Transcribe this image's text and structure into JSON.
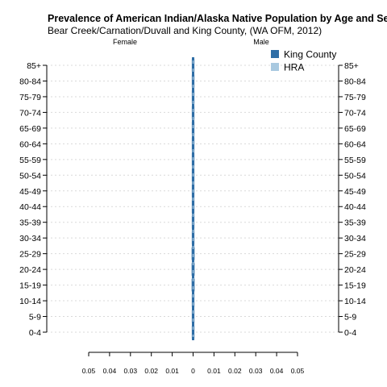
{
  "chart_data": {
    "type": "bar",
    "orientation": "horizontal",
    "title": "Prevalence of American Indian/Alaska Native Population by Age and Sex",
    "subtitle": "Bear Creek/Carnation/Duvall and King County, (WA OFM, 2012)",
    "left_label": "Female",
    "right_label": "Male",
    "categories": [
      "0-4",
      "5-9",
      "10-14",
      "15-19",
      "20-24",
      "25-29",
      "30-34",
      "35-39",
      "40-44",
      "45-49",
      "50-54",
      "55-59",
      "60-64",
      "65-69",
      "70-74",
      "75-79",
      "80-84",
      "85+"
    ],
    "x_ticks": [
      "0.05",
      "0.04",
      "0.03",
      "0.02",
      "0.01",
      "0",
      "0.01",
      "0.02",
      "0.03",
      "0.04",
      "0.05"
    ],
    "xlim": [
      -0.05,
      0.05
    ],
    "grid": true,
    "legend": {
      "position": "top-right",
      "entries": [
        {
          "label": "King County",
          "color": "#2f6ea6"
        },
        {
          "label": "HRA",
          "color": "#a9c9e0"
        }
      ]
    },
    "series": [
      {
        "name": "King County",
        "color": "#2f6ea6",
        "female": [
          0.0006,
          0.0006,
          0.0006,
          0.0007,
          0.0007,
          0.0007,
          0.0006,
          0.0006,
          0.0006,
          0.0006,
          0.0006,
          0.0005,
          0.0005,
          0.0004,
          0.0003,
          0.0002,
          0.0002,
          0.0001
        ],
        "male": [
          0.0006,
          0.0006,
          0.0006,
          0.0007,
          0.0007,
          0.0007,
          0.0006,
          0.0006,
          0.0006,
          0.0006,
          0.0006,
          0.0005,
          0.0005,
          0.0004,
          0.0003,
          0.0002,
          0.0002,
          0.0001
        ]
      },
      {
        "name": "HRA",
        "color": "#a9c9e0",
        "female": [
          0.0004,
          0.0004,
          0.0004,
          0.0005,
          0.0004,
          0.0004,
          0.0004,
          0.0004,
          0.0004,
          0.0004,
          0.0004,
          0.0003,
          0.0003,
          0.0002,
          0.0002,
          0.0001,
          0.0001,
          0.0001
        ],
        "male": [
          0.0004,
          0.0004,
          0.0004,
          0.0005,
          0.0004,
          0.0004,
          0.0004,
          0.0004,
          0.0004,
          0.0004,
          0.0004,
          0.0003,
          0.0003,
          0.0002,
          0.0002,
          0.0001,
          0.0001,
          0.0001
        ]
      }
    ]
  }
}
